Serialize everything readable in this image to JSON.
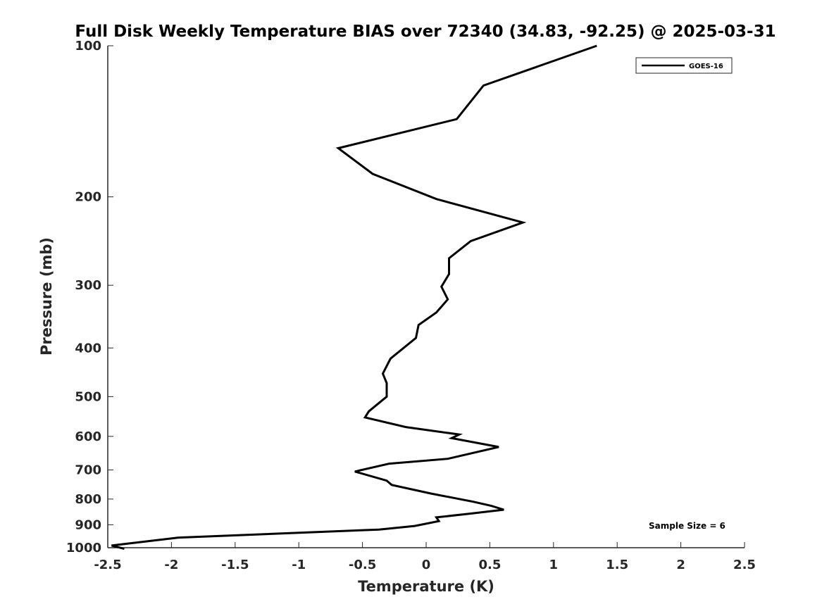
{
  "chart_data": {
    "type": "line",
    "title": "Full Disk Weekly Temperature BIAS over 72340 (34.83, -92.25) @ 2025-03-31",
    "xlabel": "Temperature (K)",
    "ylabel": "Pressure (mb)",
    "xlim": [
      -2.5,
      2.5
    ],
    "ylim": [
      100,
      1000
    ],
    "y_scale": "log",
    "y_reversed": true,
    "grid": false,
    "x_ticks": [
      -2.5,
      -2,
      -1.5,
      -1,
      -0.5,
      0,
      0.5,
      1,
      1.5,
      2,
      2.5
    ],
    "x_tick_labels": [
      "-2.5",
      "-2",
      "-1.5",
      "-1",
      "-0.5",
      "0",
      "0.5",
      "1",
      "1.5",
      "2",
      "2.5"
    ],
    "y_ticks": [
      100,
      200,
      300,
      400,
      500,
      600,
      700,
      800,
      900,
      1000
    ],
    "y_tick_labels": [
      "100",
      "200",
      "300",
      "400",
      "500",
      "600",
      "700",
      "800",
      "900",
      "1000"
    ],
    "legend": {
      "placement": "top-right",
      "entries": [
        "GOES-16"
      ]
    },
    "annotation": "Sample Size = 6",
    "series": [
      {
        "name": "GOES-16",
        "color": "#000000",
        "x": [
          1.34,
          0.45,
          0.24,
          -0.69,
          -0.42,
          0.08,
          0.76,
          0.35,
          0.18,
          0.18,
          0.12,
          0.17,
          0.08,
          -0.06,
          -0.08,
          -0.28,
          -0.34,
          -0.31,
          -0.31,
          -0.45,
          -0.48,
          -0.16,
          0.26,
          0.2,
          0.57,
          0.17,
          -0.29,
          -0.56,
          -0.31,
          -0.27,
          0.04,
          0.37,
          0.51,
          0.61,
          0.35,
          0.08,
          0.1,
          -0.09,
          -0.37,
          -1.95,
          -2.47,
          -2.37
        ],
        "y": [
          100,
          120,
          140,
          160,
          180,
          202,
          225,
          245,
          265,
          285,
          302,
          320,
          340,
          360,
          382,
          420,
          450,
          470,
          500,
          535,
          550,
          575,
          595,
          605,
          630,
          665,
          680,
          705,
          735,
          750,
          780,
          810,
          825,
          840,
          855,
          870,
          885,
          905,
          920,
          955,
          990,
          1005
        ]
      }
    ]
  }
}
